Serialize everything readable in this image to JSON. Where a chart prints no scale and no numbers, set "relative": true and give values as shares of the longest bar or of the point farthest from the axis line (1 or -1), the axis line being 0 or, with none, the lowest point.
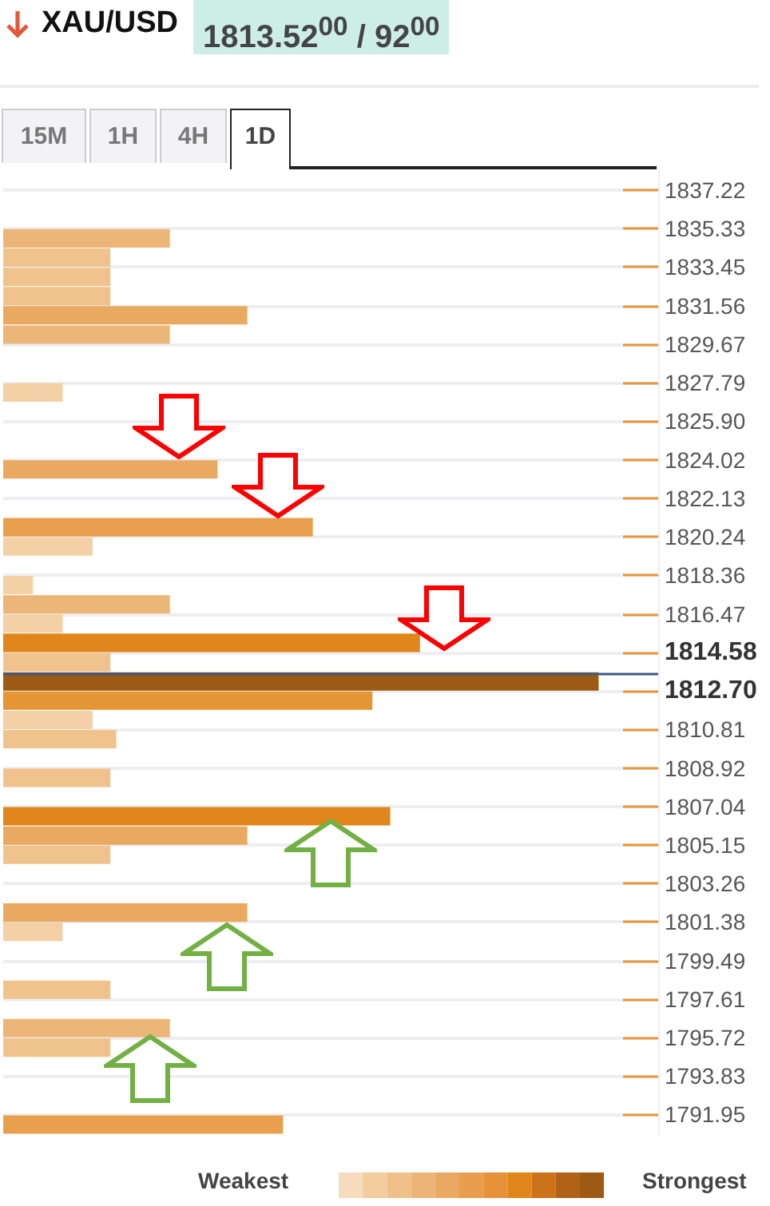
{
  "chart_data": {
    "type": "bar",
    "orientation": "horizontal",
    "relative": true,
    "title": "XAU/USD",
    "subtitle": "1813.52$^{00}$ / 92$^{00}$",
    "annotations": [
      "15M",
      "1H",
      "4H",
      "1D",
      "Weakest",
      "Strongest"
    ],
    "x": [
      1834.86,
      1833.92,
      1832.97,
      1832.03,
      1831.09,
      1830.14,
      1827.31,
      1823.54,
      1820.71,
      1819.77,
      1817.88,
      1816.93,
      1815.99,
      1815.05,
      1814.1,
      1813.16,
      1812.22,
      1811.27,
      1810.33,
      1808.44,
      1806.56,
      1805.61,
      1804.67,
      1801.84,
      1800.9,
      1798.06,
      1796.18,
      1795.23,
      1791.46
    ],
    "values": [
      0.28,
      0.18,
      0.18,
      0.18,
      0.41,
      0.28,
      0.1,
      0.36,
      0.52,
      0.15,
      0.05,
      0.28,
      0.1,
      0.7,
      0.18,
      1,
      0.62,
      0.15,
      0.19,
      0.18,
      0.65,
      0.41,
      0.18,
      0.41,
      0.1,
      0.18,
      0.28,
      0.18,
      0.47
    ],
    "colors": [
      "#edb679",
      "#f1c38c",
      "#f1c38c",
      "#f1c38c",
      "#eaa960",
      "#edb679",
      "#f3d0a5",
      "#eaa960",
      "#e8a04f",
      "#f3d0a5",
      "#f3d0a5",
      "#edb679",
      "#f3d0a5",
      "#e0861a",
      "#f1c38c",
      "#9c5a14",
      "#e69535",
      "#f3d0a5",
      "#f1c38c",
      "#f1c38c",
      "#e0861a",
      "#eaa960",
      "#f1c38c",
      "#eaa960",
      "#f3d0a5",
      "#f1c38c",
      "#edb679",
      "#f1c38c",
      "#e8a04f"
    ],
    "ylim": [
      1790.99,
      1838.16
    ],
    "yticks": [
      1837.22,
      1835.33,
      1833.45,
      1831.56,
      1829.67,
      1827.79,
      {
        "value": 1825.9,
        "label": "1825.90"
      },
      1824.02,
      1822.13,
      1820.24,
      1818.36,
      1816.47,
      1814.58,
      {
        "value": 1812.7,
        "label": "1812.70"
      },
      1810.81,
      1808.92,
      1807.04,
      1805.15,
      1803.26,
      1801.38,
      1799.49,
      1797.61,
      1795.72,
      1793.83,
      1791.95
    ],
    "ref_lines": [
      {
        "axis": "y",
        "value": 1813.52,
        "color": "#3d5a80"
      }
    ],
    "grid": true
  }
}
